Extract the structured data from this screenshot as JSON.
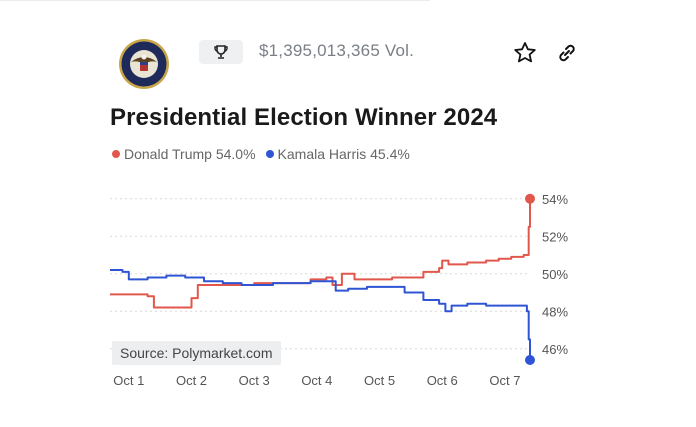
{
  "header": {
    "volume": "$1,395,013,365 Vol.",
    "seal_icon": "presidential-seal-icon",
    "trophy_icon": "trophy-icon",
    "star_icon": "star-icon",
    "link_icon": "link-icon",
    "seal_text": "SEAL OF THE PRESIDENT OF THE UNITED STATES"
  },
  "title": "Presidential Election Winner 2024",
  "legend": [
    {
      "label": "Donald Trump 54.0%",
      "color": "#e2574c"
    },
    {
      "label": "Kamala Harris 45.4%",
      "color": "#2f55d4"
    }
  ],
  "source": "Source: Polymarket.com",
  "chart_data": {
    "type": "line",
    "title": "Presidential Election Winner 2024",
    "x_ticks": [
      "Oct 1",
      "Oct 2",
      "Oct 3",
      "Oct 4",
      "Oct 5",
      "Oct 6",
      "Oct 7"
    ],
    "y_ticks": [
      "46%",
      "48%",
      "50%",
      "52%",
      "54%"
    ],
    "ylim": [
      45.4,
      55
    ],
    "xlim": [
      0.7,
      7.4
    ],
    "grid": true,
    "series": [
      {
        "name": "Donald Trump",
        "color": "#e2574c",
        "x": [
          0.7,
          1.0,
          1.3,
          1.4,
          1.5,
          1.8,
          2.0,
          2.1,
          2.4,
          2.7,
          3.0,
          3.3,
          3.6,
          3.9,
          4.15,
          4.25,
          4.4,
          4.6,
          4.9,
          5.2,
          5.5,
          5.7,
          5.95,
          6.0,
          6.1,
          6.4,
          6.7,
          6.9,
          7.1,
          7.3,
          7.35,
          7.38,
          7.4
        ],
        "y": [
          48.9,
          48.9,
          48.8,
          48.2,
          48.2,
          48.2,
          48.7,
          49.4,
          49.4,
          49.4,
          49.5,
          49.5,
          49.5,
          49.7,
          49.8,
          49.4,
          50.0,
          49.7,
          49.7,
          49.8,
          49.8,
          50.1,
          50.3,
          50.7,
          50.5,
          50.6,
          50.7,
          50.8,
          50.9,
          51.0,
          51.0,
          52.5,
          54.0
        ]
      },
      {
        "name": "Kamala Harris",
        "color": "#2f55d4",
        "x": [
          0.7,
          0.9,
          1.0,
          1.3,
          1.6,
          1.9,
          2.2,
          2.5,
          2.8,
          3.0,
          3.3,
          3.6,
          3.9,
          4.15,
          4.3,
          4.5,
          4.8,
          5.1,
          5.4,
          5.7,
          5.95,
          6.05,
          6.15,
          6.4,
          6.7,
          7.0,
          7.3,
          7.35,
          7.38,
          7.4
        ],
        "y": [
          50.2,
          50.1,
          49.7,
          49.8,
          49.9,
          49.8,
          49.6,
          49.5,
          49.4,
          49.4,
          49.5,
          49.5,
          49.6,
          49.6,
          49.1,
          49.2,
          49.3,
          49.3,
          49.0,
          48.6,
          48.4,
          48.0,
          48.3,
          48.4,
          48.3,
          48.3,
          48.3,
          48.0,
          46.5,
          45.4
        ]
      }
    ]
  }
}
